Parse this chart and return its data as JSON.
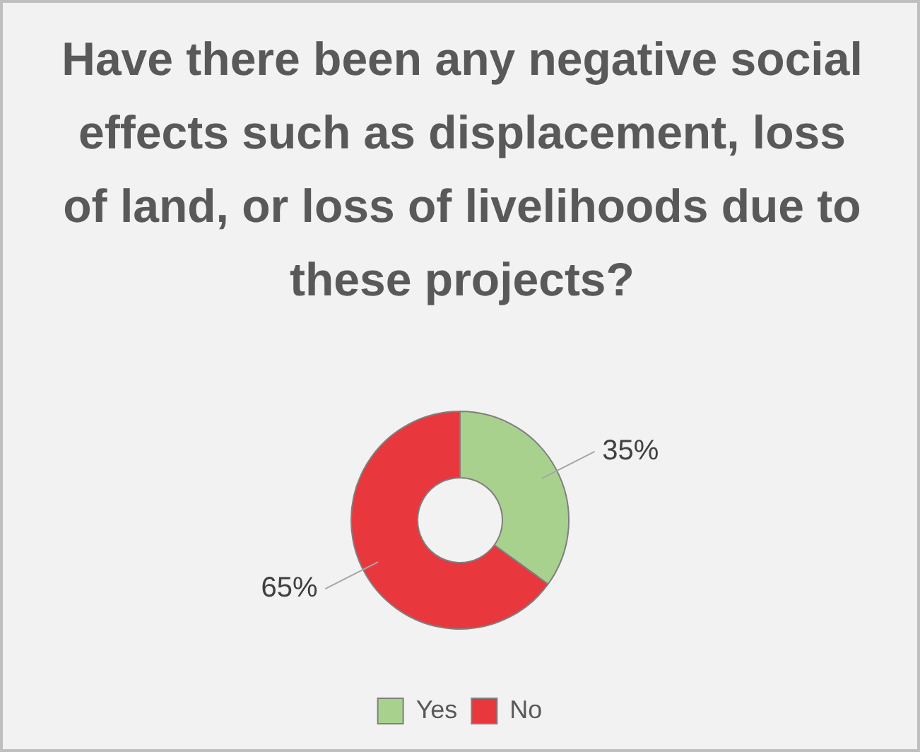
{
  "chart_data": {
    "type": "donut",
    "title": "Have there been any negative social effects such as displacement, loss of land, or loss of livelihoods due to these projects?",
    "categories": [
      "Yes",
      "No"
    ],
    "values": [
      35,
      65
    ],
    "colors": [
      "#a9d18e",
      "#e8383d"
    ],
    "value_labels": [
      "35%",
      "65%"
    ],
    "legend": "bottom"
  }
}
